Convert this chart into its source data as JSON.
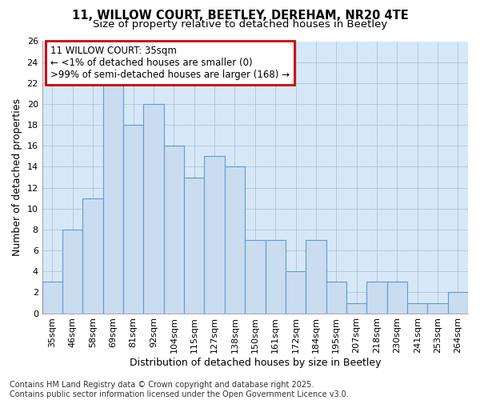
{
  "title1": "11, WILLOW COURT, BEETLEY, DEREHAM, NR20 4TE",
  "title2": "Size of property relative to detached houses in Beetley",
  "xlabel": "Distribution of detached houses by size in Beetley",
  "ylabel": "Number of detached properties",
  "categories": [
    "35sqm",
    "46sqm",
    "58sqm",
    "69sqm",
    "81sqm",
    "92sqm",
    "104sqm",
    "115sqm",
    "127sqm",
    "138sqm",
    "150sqm",
    "161sqm",
    "172sqm",
    "184sqm",
    "195sqm",
    "207sqm",
    "218sqm",
    "230sqm",
    "241sqm",
    "253sqm",
    "264sqm"
  ],
  "values": [
    3,
    8,
    11,
    22,
    18,
    20,
    16,
    13,
    15,
    14,
    7,
    7,
    4,
    7,
    3,
    1,
    3,
    3,
    1,
    1,
    2
  ],
  "bar_color": "#c9dcf0",
  "bar_edge_color": "#6699cc",
  "annotation_box_text": "11 WILLOW COURT: 35sqm\n← <1% of detached houses are smaller (0)\n>99% of semi-detached houses are larger (168) →",
  "annotation_box_color": "white",
  "annotation_box_edge_color": "#cc0000",
  "ylim": [
    0,
    26
  ],
  "yticks": [
    0,
    2,
    4,
    6,
    8,
    10,
    12,
    14,
    16,
    18,
    20,
    22,
    24,
    26
  ],
  "grid_color": "#aac4de",
  "background_color": "#d6e8f7",
  "footer_text": "Contains HM Land Registry data © Crown copyright and database right 2025.\nContains public sector information licensed under the Open Government Licence v3.0.",
  "title_fontsize": 10.5,
  "subtitle_fontsize": 9.5,
  "axis_label_fontsize": 9,
  "tick_fontsize": 8,
  "annotation_fontsize": 8.5,
  "footer_fontsize": 7
}
